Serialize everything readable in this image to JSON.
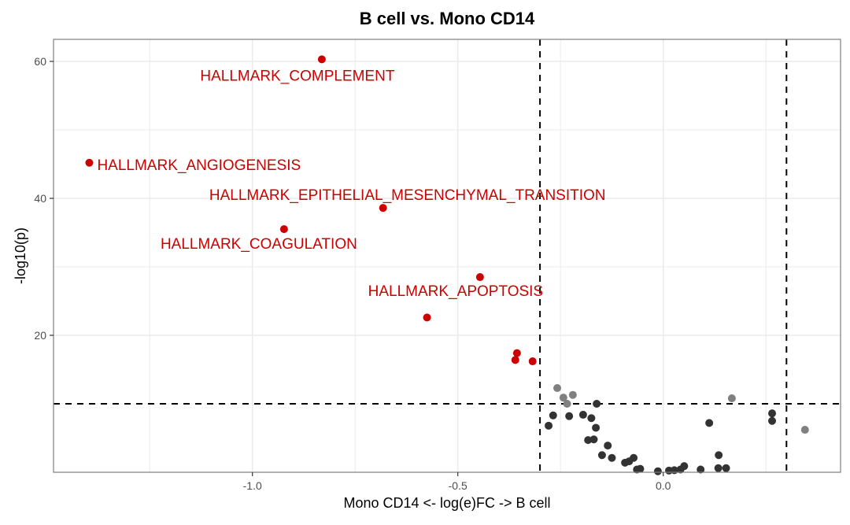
{
  "chart_data": {
    "type": "scatter",
    "title": "B cell vs. Mono CD14",
    "xlabel": "Mono CD14 <- log(e)FC -> B cell",
    "ylabel": "-log10(p)",
    "xlim": [
      -1.45,
      0.43
    ],
    "ylim": [
      0,
      63
    ],
    "x_ticks": [
      -1.0,
      -0.5,
      0.0
    ],
    "x_tick_labels": [
      "-1.0",
      "-0.5",
      "0.0"
    ],
    "x_minor_grid": [
      -1.25,
      -0.75,
      -0.25,
      0.25
    ],
    "y_ticks": [
      20,
      40,
      60
    ],
    "y_tick_labels": [
      "20",
      "40",
      "60"
    ],
    "y_minor_grid": [
      10,
      30,
      50
    ],
    "grid": true,
    "legend": "none",
    "thresholds": {
      "x_dashed": [
        -0.3,
        0.3
      ],
      "y_dashed": 10
    },
    "colors": {
      "significant": "#cc0000",
      "near_threshold": "#808080",
      "not_significant": "#333333",
      "label": "#cc0000",
      "threshold_line": "#000000",
      "grid": "#ebebeb",
      "panel_border": "#7f7f7f"
    },
    "series": [
      {
        "name": "significant",
        "points": [
          {
            "x": -0.831,
            "y": 60.3,
            "label": "HALLMARK_COMPLEMENT"
          },
          {
            "x": -1.397,
            "y": 45.2,
            "label": "HALLMARK_ANGIOGENESIS"
          },
          {
            "x": -0.682,
            "y": 38.6,
            "label": "HALLMARK_EPITHELIAL_MESENCHYMAL_TRANSITION"
          },
          {
            "x": -0.923,
            "y": 35.5,
            "label": "HALLMARK_COAGULATION"
          },
          {
            "x": -0.446,
            "y": 28.5,
            "label": "HALLMARK_APOPTOSIS"
          },
          {
            "x": -0.575,
            "y": 22.6
          },
          {
            "x": -0.356,
            "y": 17.4
          },
          {
            "x": -0.36,
            "y": 16.4
          },
          {
            "x": -0.318,
            "y": 16.2
          }
        ]
      },
      {
        "name": "near_threshold",
        "points": [
          {
            "x": -0.258,
            "y": 12.3
          },
          {
            "x": -0.243,
            "y": 10.9
          },
          {
            "x": -0.22,
            "y": 11.3
          },
          {
            "x": -0.234,
            "y": 10.0
          },
          {
            "x": 0.167,
            "y": 10.8
          },
          {
            "x": 0.345,
            "y": 6.2
          }
        ]
      },
      {
        "name": "not_significant",
        "points": [
          {
            "x": -0.162,
            "y": 10.0
          },
          {
            "x": -0.268,
            "y": 8.3
          },
          {
            "x": -0.279,
            "y": 6.8
          },
          {
            "x": -0.229,
            "y": 8.2
          },
          {
            "x": -0.195,
            "y": 8.4
          },
          {
            "x": -0.175,
            "y": 7.9
          },
          {
            "x": -0.164,
            "y": 6.5
          },
          {
            "x": -0.183,
            "y": 4.7
          },
          {
            "x": -0.169,
            "y": 4.8
          },
          {
            "x": -0.135,
            "y": 3.9
          },
          {
            "x": -0.149,
            "y": 2.5
          },
          {
            "x": -0.125,
            "y": 2.1
          },
          {
            "x": -0.093,
            "y": 1.4
          },
          {
            "x": -0.083,
            "y": 1.6
          },
          {
            "x": -0.072,
            "y": 2.1
          },
          {
            "x": -0.064,
            "y": 0.4
          },
          {
            "x": -0.056,
            "y": 0.5
          },
          {
            "x": -0.013,
            "y": 0.15
          },
          {
            "x": 0.014,
            "y": 0.25
          },
          {
            "x": 0.027,
            "y": 0.3
          },
          {
            "x": 0.042,
            "y": 0.4
          },
          {
            "x": 0.051,
            "y": 0.9
          },
          {
            "x": 0.091,
            "y": 0.4
          },
          {
            "x": 0.112,
            "y": 7.2
          },
          {
            "x": 0.135,
            "y": 2.5
          },
          {
            "x": 0.134,
            "y": 0.6
          },
          {
            "x": 0.153,
            "y": 0.6
          },
          {
            "x": 0.265,
            "y": 8.6
          },
          {
            "x": 0.265,
            "y": 7.5
          }
        ]
      }
    ]
  }
}
